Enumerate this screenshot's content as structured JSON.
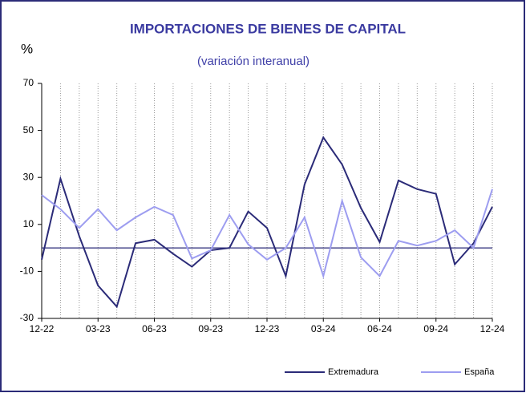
{
  "chart_data": {
    "type": "line",
    "title": "IMPORTACIONES DE BIENES DE CAPITAL",
    "subtitle": "(variación interanual)",
    "y_label": "%",
    "categories": [
      "12-22",
      null,
      null,
      "03-23",
      null,
      null,
      "06-23",
      null,
      null,
      "09-23",
      null,
      null,
      "12-23",
      null,
      null,
      "03-24",
      null,
      null,
      "06-24",
      null,
      null,
      "09-24",
      null,
      null,
      "12-24"
    ],
    "series": [
      {
        "name": "Extremadura",
        "color": "#2b2b78",
        "values": [
          -5,
          29.5,
          5,
          -16,
          -25,
          2,
          3.5,
          -2.5,
          -8,
          -1,
          0,
          15.5,
          8.5,
          -12,
          27,
          47,
          35.5,
          17,
          2.5,
          28.7,
          25,
          23,
          -7,
          2,
          17.5
        ]
      },
      {
        "name": "España",
        "color": "#9d9df0",
        "values": [
          22.5,
          16.5,
          8.5,
          16.5,
          7.5,
          13,
          17.5,
          14,
          -4.5,
          -1,
          14,
          1.5,
          -5,
          0,
          13,
          -12,
          20,
          -4,
          -12,
          3,
          1,
          3,
          7.5,
          0,
          25
        ]
      }
    ],
    "ylim": [
      -30,
      70
    ],
    "yticks": [
      -30,
      -10,
      10,
      30,
      50,
      70
    ],
    "grid": true,
    "legend": "bottom-right"
  }
}
